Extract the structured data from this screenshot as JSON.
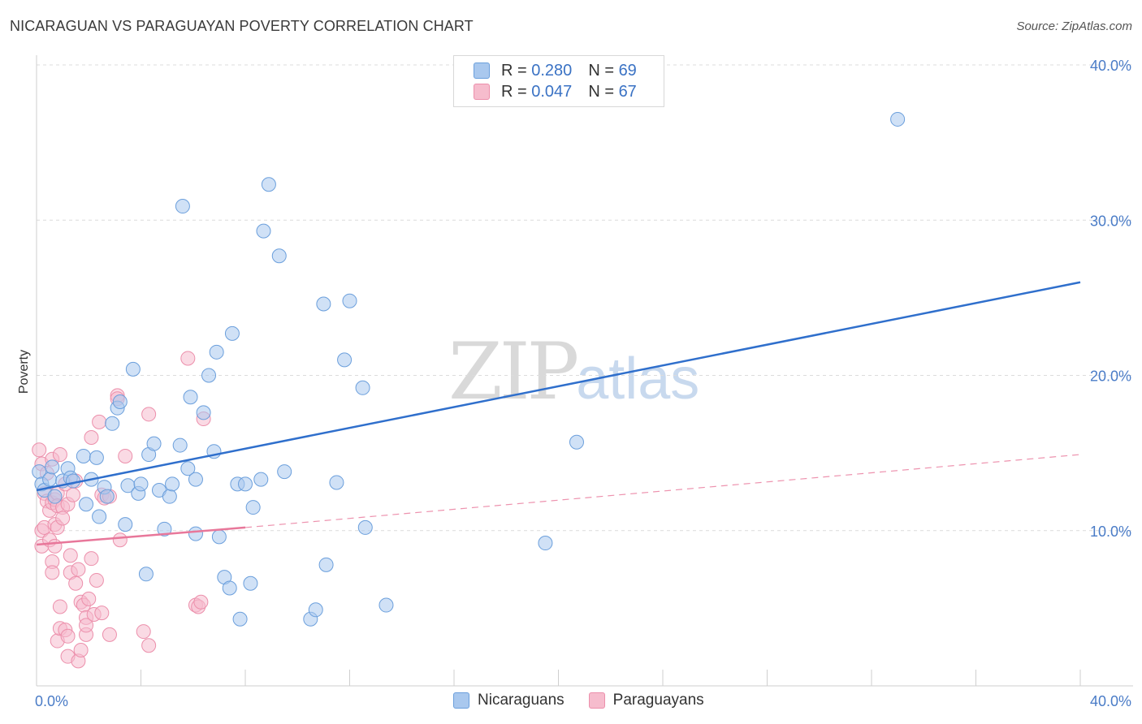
{
  "title": "NICARAGUAN VS PARAGUAYAN POVERTY CORRELATION CHART",
  "source": "Source: ZipAtlas.com",
  "watermark": {
    "zip": "ZIP",
    "atlas": "atlas"
  },
  "legend": {
    "rows": [
      {
        "r_label": "R =",
        "r_value": "0.280",
        "n_label": "N =",
        "n_value": "69"
      },
      {
        "r_label": "R =",
        "r_value": "0.047",
        "n_label": "N =",
        "n_value": "67"
      }
    ]
  },
  "bottom_legend": [
    "Nicaraguans",
    "Paraguayans"
  ],
  "colors": {
    "blue_fill": "#a9c8ee",
    "blue_stroke": "#6b9fdc",
    "blue_line": "#2f6fcc",
    "pink_fill": "#f6bccd",
    "pink_stroke": "#ec8fab",
    "pink_line": "#e8779a",
    "grid": "#dcdcdc",
    "axis_text": "#4a7cc7"
  },
  "chart_data": {
    "type": "scatter",
    "title": "NICARAGUAN VS PARAGUAYAN POVERTY CORRELATION CHART",
    "xlabel": "",
    "ylabel": "Poverty",
    "xlim": [
      0,
      40
    ],
    "ylim": [
      0,
      40
    ],
    "x_tick_labels": [
      "0.0%",
      "40.0%"
    ],
    "y_ticks": [
      10,
      20,
      30,
      40
    ],
    "y_tick_labels": [
      "10.0%",
      "20.0%",
      "30.0%",
      "40.0%"
    ],
    "series": [
      {
        "name": "Nicaraguans",
        "color": "#a9c8ee",
        "trend": {
          "x": [
            0,
            40
          ],
          "y": [
            12.6,
            26.0
          ],
          "style": "solid"
        },
        "points": [
          [
            0.1,
            13.8
          ],
          [
            0.2,
            13.0
          ],
          [
            0.3,
            12.6
          ],
          [
            0.5,
            13.3
          ],
          [
            0.6,
            14.1
          ],
          [
            0.7,
            12.2
          ],
          [
            1.0,
            13.2
          ],
          [
            1.2,
            14.0
          ],
          [
            1.3,
            13.4
          ],
          [
            1.4,
            13.2
          ],
          [
            1.8,
            14.8
          ],
          [
            1.9,
            11.7
          ],
          [
            2.1,
            13.3
          ],
          [
            2.3,
            14.7
          ],
          [
            2.4,
            10.9
          ],
          [
            2.6,
            12.8
          ],
          [
            2.7,
            12.2
          ],
          [
            2.9,
            16.9
          ],
          [
            3.1,
            17.9
          ],
          [
            3.2,
            18.3
          ],
          [
            3.4,
            10.4
          ],
          [
            3.5,
            12.9
          ],
          [
            3.7,
            20.4
          ],
          [
            3.9,
            12.4
          ],
          [
            4.0,
            13.0
          ],
          [
            4.2,
            7.2
          ],
          [
            4.3,
            14.9
          ],
          [
            4.5,
            15.6
          ],
          [
            4.7,
            12.6
          ],
          [
            4.9,
            10.1
          ],
          [
            5.1,
            12.2
          ],
          [
            5.2,
            13.0
          ],
          [
            5.5,
            15.5
          ],
          [
            5.6,
            30.9
          ],
          [
            5.8,
            14.0
          ],
          [
            5.9,
            18.6
          ],
          [
            6.1,
            13.3
          ],
          [
            6.1,
            9.8
          ],
          [
            6.4,
            17.6
          ],
          [
            6.6,
            20.0
          ],
          [
            6.8,
            15.1
          ],
          [
            6.9,
            21.5
          ],
          [
            7.0,
            9.6
          ],
          [
            7.2,
            7.0
          ],
          [
            7.4,
            6.3
          ],
          [
            7.5,
            22.7
          ],
          [
            7.7,
            13.0
          ],
          [
            7.8,
            4.3
          ],
          [
            8.0,
            13.0
          ],
          [
            8.2,
            6.6
          ],
          [
            8.3,
            11.5
          ],
          [
            8.6,
            13.3
          ],
          [
            8.7,
            29.3
          ],
          [
            8.9,
            32.3
          ],
          [
            9.3,
            27.7
          ],
          [
            9.5,
            13.8
          ],
          [
            10.5,
            4.3
          ],
          [
            10.7,
            4.9
          ],
          [
            11.0,
            24.6
          ],
          [
            11.1,
            7.8
          ],
          [
            11.5,
            13.1
          ],
          [
            11.8,
            21.0
          ],
          [
            12.0,
            24.8
          ],
          [
            12.5,
            19.2
          ],
          [
            12.6,
            10.2
          ],
          [
            13.4,
            5.2
          ],
          [
            19.5,
            9.2
          ],
          [
            20.7,
            15.7
          ],
          [
            33.0,
            36.5
          ]
        ]
      },
      {
        "name": "Paraguayans",
        "color": "#f6bccd",
        "trend": {
          "x": [
            0,
            8
          ],
          "y": [
            9.1,
            10.2
          ],
          "style": "solid",
          "extended": {
            "x": [
              8,
              40
            ],
            "y": [
              10.2,
              14.9
            ],
            "style": "dashed"
          }
        },
        "points": [
          [
            0.1,
            15.2
          ],
          [
            0.2,
            14.3
          ],
          [
            0.2,
            10.0
          ],
          [
            0.2,
            9.0
          ],
          [
            0.3,
            12.4
          ],
          [
            0.3,
            10.2
          ],
          [
            0.4,
            13.7
          ],
          [
            0.4,
            11.9
          ],
          [
            0.5,
            11.3
          ],
          [
            0.5,
            9.4
          ],
          [
            0.6,
            14.6
          ],
          [
            0.6,
            11.8
          ],
          [
            0.6,
            8.0
          ],
          [
            0.6,
            7.3
          ],
          [
            0.7,
            12.0
          ],
          [
            0.7,
            10.4
          ],
          [
            0.7,
            9.0
          ],
          [
            0.8,
            12.4
          ],
          [
            0.8,
            11.6
          ],
          [
            0.8,
            10.2
          ],
          [
            0.8,
            2.9
          ],
          [
            0.9,
            3.7
          ],
          [
            0.9,
            5.1
          ],
          [
            0.9,
            14.9
          ],
          [
            1.0,
            11.5
          ],
          [
            1.0,
            10.8
          ],
          [
            1.1,
            3.6
          ],
          [
            1.1,
            13.0
          ],
          [
            1.2,
            11.7
          ],
          [
            1.2,
            3.2
          ],
          [
            1.2,
            1.9
          ],
          [
            1.3,
            8.4
          ],
          [
            1.3,
            7.3
          ],
          [
            1.4,
            12.3
          ],
          [
            1.5,
            13.2
          ],
          [
            1.5,
            6.6
          ],
          [
            1.6,
            1.6
          ],
          [
            1.6,
            7.5
          ],
          [
            1.7,
            5.4
          ],
          [
            1.7,
            2.3
          ],
          [
            1.8,
            5.2
          ],
          [
            1.9,
            4.4
          ],
          [
            1.9,
            3.3
          ],
          [
            1.9,
            3.9
          ],
          [
            2.0,
            5.6
          ],
          [
            2.1,
            16.0
          ],
          [
            2.1,
            8.2
          ],
          [
            2.2,
            4.6
          ],
          [
            2.3,
            6.8
          ],
          [
            2.4,
            17.0
          ],
          [
            2.5,
            4.7
          ],
          [
            2.5,
            12.3
          ],
          [
            2.6,
            12.1
          ],
          [
            2.8,
            3.3
          ],
          [
            2.8,
            12.2
          ],
          [
            3.1,
            18.7
          ],
          [
            3.1,
            18.5
          ],
          [
            3.2,
            9.4
          ],
          [
            3.4,
            14.8
          ],
          [
            4.1,
            3.5
          ],
          [
            4.3,
            2.6
          ],
          [
            4.3,
            17.5
          ],
          [
            5.8,
            21.1
          ],
          [
            6.1,
            5.2
          ],
          [
            6.2,
            5.1
          ],
          [
            6.3,
            5.4
          ],
          [
            6.4,
            17.2
          ]
        ]
      }
    ]
  }
}
